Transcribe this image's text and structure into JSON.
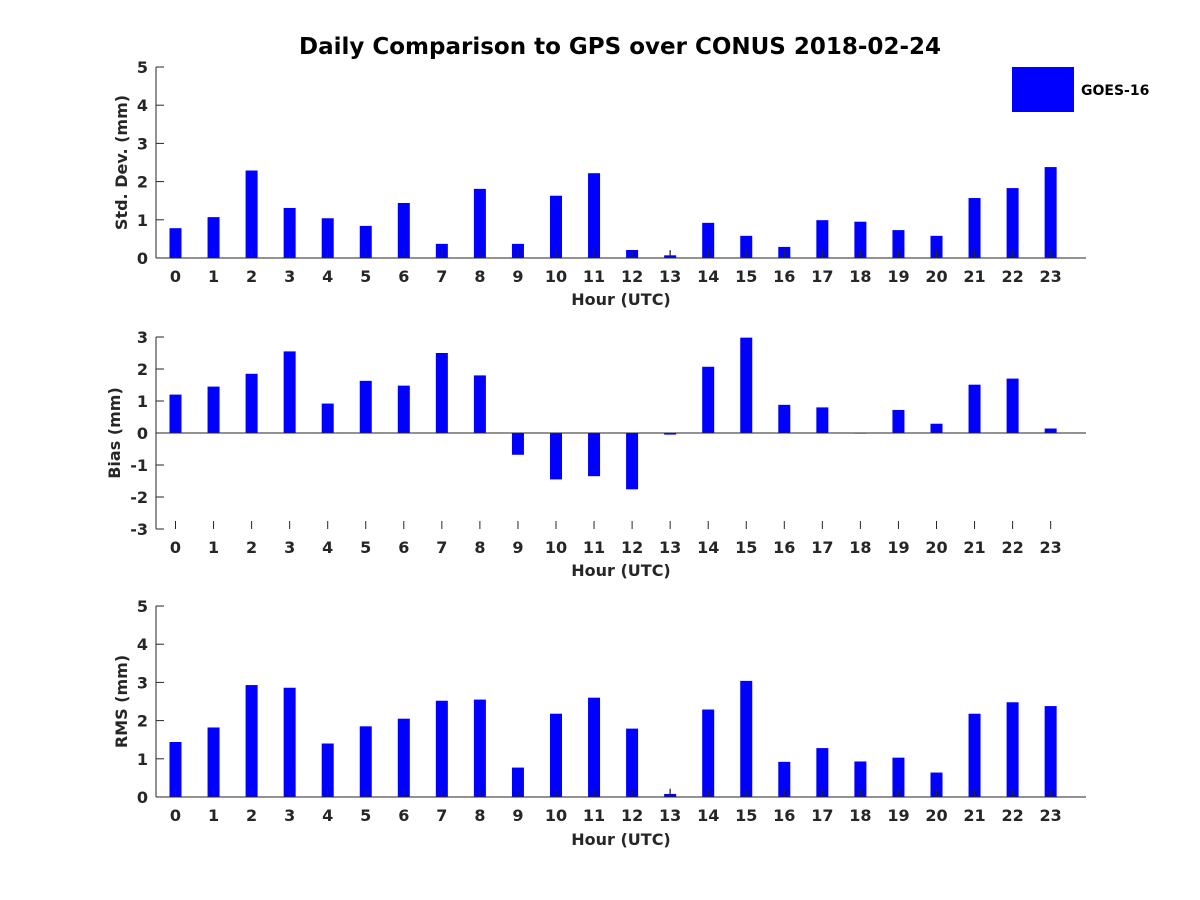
{
  "title": "Daily Comparison to GPS over CONUS 2018-02-24",
  "colors": {
    "bar": "#0000ff",
    "axis": "#262626"
  },
  "legend": {
    "label": "GOES-16",
    "position": "top-right"
  },
  "chart_data": [
    {
      "type": "bar",
      "name": "std-dev",
      "xlabel": "Hour (UTC)",
      "ylabel": "Std. Dev. (mm)",
      "ylim": [
        0,
        5
      ],
      "yticks": [
        0,
        1,
        2,
        3,
        4,
        5
      ],
      "categories": [
        "0",
        "1",
        "2",
        "3",
        "4",
        "5",
        "6",
        "7",
        "8",
        "9",
        "10",
        "11",
        "12",
        "13",
        "14",
        "15",
        "16",
        "17",
        "18",
        "19",
        "20",
        "21",
        "22",
        "23"
      ],
      "series": [
        {
          "name": "GOES-16",
          "values": [
            0.78,
            1.07,
            2.29,
            1.31,
            1.04,
            0.84,
            1.44,
            0.37,
            1.81,
            0.37,
            1.63,
            2.22,
            0.21,
            0.07,
            0.92,
            0.58,
            0.29,
            0.99,
            0.95,
            0.73,
            0.58,
            1.57,
            1.83,
            2.38
          ]
        }
      ],
      "errors": {
        "13": 0.12
      }
    },
    {
      "type": "bar",
      "name": "bias",
      "xlabel": "Hour (UTC)",
      "ylabel": "Bias (mm)",
      "ylim": [
        -3,
        3
      ],
      "yticks": [
        -3,
        -2,
        -1,
        0,
        1,
        2,
        3
      ],
      "categories": [
        "0",
        "1",
        "2",
        "3",
        "4",
        "5",
        "6",
        "7",
        "8",
        "9",
        "10",
        "11",
        "12",
        "13",
        "14",
        "15",
        "16",
        "17",
        "18",
        "19",
        "20",
        "21",
        "22",
        "23"
      ],
      "series": [
        {
          "name": "GOES-16",
          "values": [
            1.2,
            1.45,
            1.85,
            2.55,
            0.92,
            1.63,
            1.48,
            2.5,
            1.8,
            -0.68,
            -1.45,
            -1.35,
            -1.76,
            -0.05,
            2.07,
            2.98,
            0.88,
            0.8,
            0.0,
            0.72,
            0.29,
            1.51,
            1.7,
            0.14
          ]
        }
      ]
    },
    {
      "type": "bar",
      "name": "rms",
      "xlabel": "Hour (UTC)",
      "ylabel": "RMS (mm)",
      "ylim": [
        0,
        5
      ],
      "yticks": [
        0,
        1,
        2,
        3,
        4,
        5
      ],
      "categories": [
        "0",
        "1",
        "2",
        "3",
        "4",
        "5",
        "6",
        "7",
        "8",
        "9",
        "10",
        "11",
        "12",
        "13",
        "14",
        "15",
        "16",
        "17",
        "18",
        "19",
        "20",
        "21",
        "22",
        "23"
      ],
      "series": [
        {
          "name": "GOES-16",
          "values": [
            1.44,
            1.82,
            2.93,
            2.86,
            1.4,
            1.85,
            2.05,
            2.52,
            2.55,
            0.77,
            2.18,
            2.6,
            1.79,
            0.08,
            2.29,
            3.04,
            0.92,
            1.28,
            0.93,
            1.03,
            0.64,
            2.18,
            2.48,
            2.38
          ]
        }
      ],
      "errors": {
        "13": 0.14
      }
    }
  ]
}
